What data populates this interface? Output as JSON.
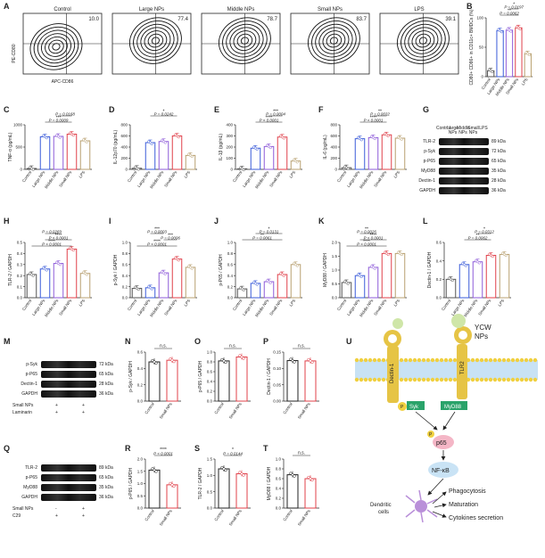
{
  "letters": [
    "A",
    "B",
    "C",
    "D",
    "E",
    "F",
    "G",
    "H",
    "I",
    "J",
    "K",
    "L",
    "M",
    "N",
    "O",
    "P",
    "Q",
    "R",
    "S",
    "T",
    "U"
  ],
  "flow": {
    "panels": [
      {
        "title": "Control",
        "value": "10.0"
      },
      {
        "title": "Large NPs",
        "value": "77.4"
      },
      {
        "title": "Middle NPs",
        "value": "78.7"
      },
      {
        "title": "Small NPs",
        "value": "83.7"
      },
      {
        "title": "LPS",
        "value": "39.1"
      }
    ],
    "ylabel": "PE-CD80",
    "xlabel": "APC-CD86"
  },
  "groups5": [
    "Control",
    "Large NPs",
    "Middle NPs",
    "Small NPs",
    "LPS"
  ],
  "colors": [
    "#555555",
    "#3a5bd9",
    "#8e5bd9",
    "#e0404a",
    "#b8a070"
  ],
  "chart_data": [
    {
      "id": "B",
      "type": "bar",
      "ylabel": "CD80+ CD86+ in CD11c+ BMDCs (%)",
      "ylim": [
        0,
        100
      ],
      "yticks": [
        "0",
        "50",
        "100"
      ],
      "values": [
        10,
        78,
        79,
        83,
        39
      ],
      "annotations": [
        {
          "from": 1,
          "to": 3,
          "text": "**",
          "p": "P = 0.0062"
        },
        {
          "from": 2,
          "to": 3,
          "text": "*",
          "p": "P = 0.0197"
        }
      ]
    },
    {
      "id": "C",
      "type": "bar",
      "ylabel": "TNF-α (pg/mL)",
      "ylim": [
        0,
        1000
      ],
      "yticks": [
        "0",
        "500",
        "1000"
      ],
      "values": [
        20,
        730,
        740,
        790,
        640
      ],
      "annotations": [
        {
          "from": 1,
          "to": 3,
          "text": "***",
          "p": "P = 0.0009"
        },
        {
          "from": 2,
          "to": 3,
          "text": "",
          "p": "P = 0.0168"
        }
      ]
    },
    {
      "id": "D",
      "type": "bar",
      "ylabel": "IL-12p70 (pg/mL)",
      "ylim": [
        0,
        800
      ],
      "yticks": [
        "0",
        "200",
        "400",
        "600",
        "800"
      ],
      "values": [
        20,
        480,
        500,
        600,
        250
      ],
      "annotations": [
        {
          "from": 1,
          "to": 3,
          "text": "*",
          "p": "P = 0.0242"
        }
      ]
    },
    {
      "id": "E",
      "type": "bar",
      "ylabel": "IL-1β (pg/mL)",
      "ylim": [
        0,
        400
      ],
      "yticks": [
        "0",
        "100",
        "200",
        "300",
        "400"
      ],
      "values": [
        5,
        190,
        205,
        290,
        75
      ],
      "annotations": [
        {
          "from": 1,
          "to": 3,
          "text": "****",
          "p": "P < 0.0001"
        },
        {
          "from": 2,
          "to": 3,
          "text": "***",
          "p": "P = 0.0004"
        }
      ]
    },
    {
      "id": "F",
      "type": "bar",
      "ylabel": "IL-6 (pg/mL)",
      "ylim": [
        0,
        800
      ],
      "yticks": [
        "0",
        "200",
        "400",
        "600",
        "800"
      ],
      "values": [
        30,
        550,
        570,
        620,
        560
      ],
      "annotations": [
        {
          "from": 1,
          "to": 3,
          "text": "****",
          "p": "P < 0.0001"
        },
        {
          "from": 2,
          "to": 3,
          "text": "**",
          "p": "P = 0.0032"
        }
      ]
    },
    {
      "id": "H",
      "type": "bar",
      "ylabel": "TLR-2 / GAPDH",
      "ylim": [
        0,
        0.5
      ],
      "yticks": [
        "0.0",
        "0.1",
        "0.2",
        "0.3",
        "0.4",
        "0.5"
      ],
      "values": [
        0.21,
        0.26,
        0.31,
        0.44,
        0.22
      ],
      "annotations": [
        {
          "from": 0,
          "to": 3,
          "text": "****",
          "p": "P < 0.0001"
        },
        {
          "from": 1,
          "to": 3,
          "text": "****",
          "p": "P < 0.0001"
        },
        {
          "from": 1,
          "to": 2,
          "text": "",
          "p": "P = 0.0269"
        }
      ]
    },
    {
      "id": "I",
      "type": "bar",
      "ylabel": "p-Syk / GAPDH",
      "ylim": [
        0,
        1.0
      ],
      "yticks": [
        "0.0",
        "0.2",
        "0.4",
        "0.6",
        "0.8",
        "1.0"
      ],
      "values": [
        0.17,
        0.18,
        0.45,
        0.7,
        0.55
      ],
      "annotations": [
        {
          "from": 0,
          "to": 3,
          "text": "****",
          "p": "P < 0.0001"
        },
        {
          "from": 2,
          "to": 3,
          "text": "***",
          "p": "P = 0.0006"
        },
        {
          "from": 1,
          "to": 2,
          "text": "***",
          "p": "P = 0.0003"
        }
      ]
    },
    {
      "id": "J",
      "type": "bar",
      "ylabel": "p-P65 / GAPDH",
      "ylim": [
        0,
        1.0
      ],
      "yticks": [
        "0.0",
        "0.2",
        "0.4",
        "0.6",
        "0.8",
        "1.0"
      ],
      "values": [
        0.16,
        0.26,
        0.29,
        0.42,
        0.6
      ],
      "annotations": [
        {
          "from": 0,
          "to": 3,
          "text": "**",
          "p": "P = 0.0061"
        },
        {
          "from": 1,
          "to": 3,
          "text": "*",
          "p": "P = 0.0131"
        }
      ]
    },
    {
      "id": "K",
      "type": "bar",
      "ylabel": "MyD88 / GAPDH",
      "ylim": [
        0,
        2.0
      ],
      "yticks": [
        "0.0",
        "0.5",
        "1.0",
        "1.5",
        "2.0"
      ],
      "values": [
        0.55,
        0.8,
        1.1,
        1.6,
        1.6
      ],
      "annotations": [
        {
          "from": 0,
          "to": 3,
          "text": "****",
          "p": "P < 0.0001"
        },
        {
          "from": 1,
          "to": 3,
          "text": "****",
          "p": "P < 0.0001"
        },
        {
          "from": 1,
          "to": 2,
          "text": "**",
          "p": "P = 0.0026"
        }
      ]
    },
    {
      "id": "L",
      "type": "bar",
      "ylabel": "Dectin-1 / GAPDH",
      "ylim": [
        0,
        0.6
      ],
      "yticks": [
        "0.0",
        "0.2",
        "0.4",
        "0.6"
      ],
      "values": [
        0.2,
        0.36,
        0.39,
        0.46,
        0.47
      ],
      "annotations": [
        {
          "from": 1,
          "to": 3,
          "text": "**",
          "p": "P = 0.0062"
        },
        {
          "from": 2,
          "to": 3,
          "text": "*",
          "p": "P = 0.0312"
        }
      ]
    }
  ],
  "chart_data_pairs": [
    {
      "id": "N",
      "ylabel": "p-Syk / GAPDH",
      "ylim": [
        0,
        0.6
      ],
      "yticks": [
        "0.0",
        "0.2",
        "0.4",
        "0.6"
      ],
      "values": [
        0.48,
        0.5
      ],
      "annotation": "n.s.",
      "categories": [
        "Control",
        "Small NPs"
      ]
    },
    {
      "id": "O",
      "ylabel": "p-P65 / GAPDH",
      "ylim": [
        0,
        1.0
      ],
      "yticks": [
        "0.0",
        "0.2",
        "0.4",
        "0.6",
        "0.8",
        "1.0"
      ],
      "values": [
        0.82,
        0.9
      ],
      "annotation": "n.s.",
      "categories": [
        "Control",
        "Small NPs"
      ]
    },
    {
      "id": "P",
      "ylabel": "Dectin-1 / GAPDH",
      "ylim": [
        0,
        0.15
      ],
      "yticks": [
        "0.00",
        "0.05",
        "0.10",
        "0.15"
      ],
      "values": [
        0.124,
        0.123
      ],
      "annotation": "n.s.",
      "categories": [
        "Control",
        "Small NPs"
      ]
    },
    {
      "id": "R",
      "ylabel": "p-P65 / GAPDH",
      "ylim": [
        0,
        2.0
      ],
      "yticks": [
        "0.0",
        "0.5",
        "1.0",
        "1.5",
        "2.0"
      ],
      "values": [
        1.55,
        0.95
      ],
      "annotation": "****",
      "p": "P < 0.0001",
      "categories": [
        "Control",
        "Small NPs"
      ]
    },
    {
      "id": "S",
      "ylabel": "TLR-2 / GAPDH",
      "ylim": [
        0,
        1.5
      ],
      "yticks": [
        "0.0",
        "0.5",
        "1.0",
        "1.5"
      ],
      "values": [
        1.2,
        1.05
      ],
      "annotation": "*",
      "p": "P = 0.0144",
      "categories": [
        "Control",
        "Small NPs"
      ]
    },
    {
      "id": "T",
      "ylabel": "MyD88 / GAPDH",
      "ylim": [
        0,
        1.0
      ],
      "yticks": [
        "0.0",
        "0.2",
        "0.4",
        "0.6",
        "0.8",
        "1.0"
      ],
      "values": [
        0.68,
        0.6
      ],
      "annotation": "n.s.",
      "categories": [
        "Control",
        "Small NPs"
      ]
    }
  ],
  "blotG": {
    "header": [
      "Control",
      "Large NPs",
      "Middle NPs",
      "Small NPs",
      "LPS"
    ],
    "rows": [
      {
        "name": "TLR-2",
        "kda": "89 kDa"
      },
      {
        "name": "p-Syk",
        "kda": "72 kDa"
      },
      {
        "name": "p-P65",
        "kda": "65 kDa"
      },
      {
        "name": "MyD88",
        "kda": "35 kDa"
      },
      {
        "name": "Dectin-1",
        "kda": "28 kDa"
      },
      {
        "name": "GAPDH",
        "kda": "36 kDa"
      }
    ]
  },
  "blotM": {
    "rows": [
      {
        "name": "p-Syk",
        "kda": "72 kDa"
      },
      {
        "name": "p-P65",
        "kda": "65 kDa"
      },
      {
        "name": "Dectin-1",
        "kda": "28 kDa"
      },
      {
        "name": "GAPDH",
        "kda": "36 kDa"
      }
    ],
    "treat": [
      {
        "name": "Small NPs",
        "signs": [
          "+",
          "+"
        ]
      },
      {
        "name": "Laminarin",
        "signs": [
          "+",
          "+"
        ]
      }
    ]
  },
  "blotQ": {
    "rows": [
      {
        "name": "TLR-2",
        "kda": "89 kDa"
      },
      {
        "name": "p-P65",
        "kda": "65 kDa"
      },
      {
        "name": "MyD88",
        "kda": "35 kDa"
      },
      {
        "name": "GAPDH",
        "kda": "36 kDa"
      }
    ],
    "treat": [
      {
        "name": "Small NPs",
        "signs": [
          "-",
          "+"
        ]
      },
      {
        "name": "C29",
        "signs": [
          "+",
          "+"
        ]
      }
    ]
  },
  "diagram": {
    "ycw": "YCW",
    "nps": "NPs",
    "dectin": "Dectin-1",
    "tlr": "TLR2",
    "syk": "Syk",
    "myd88": "MyD88",
    "p": "P",
    "p65": "p65",
    "nfkb": "NF-κB",
    "dc": "Dendritic\ncells",
    "out1": "Phagocytosis",
    "out2": "Maturation",
    "out3": "Cytokines secretion"
  }
}
